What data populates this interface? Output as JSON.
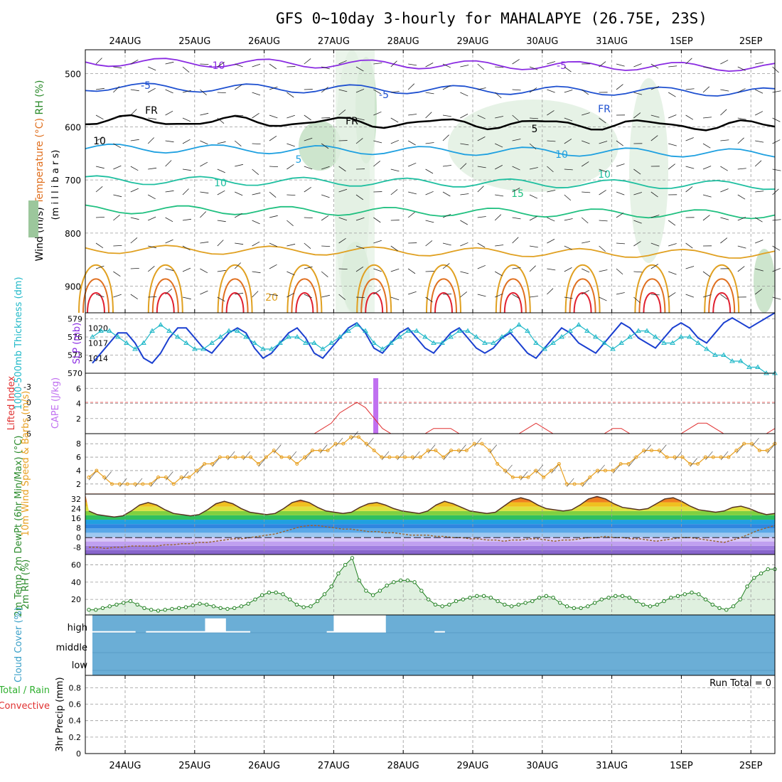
{
  "title": "GFS 0~10day 3-hourly for MAHALAPYE (26.75E, 23S)",
  "colors": {
    "grid": "#999999",
    "wind": "#000000",
    "temp_purple": "#8a2be2",
    "temp_blue": "#1e50d0",
    "temp_cyan": "#1ea0e0",
    "temp_teal": "#1ebfa0",
    "temp_green": "#20c080",
    "temp_orange": "#e0a020",
    "temp_darkorange": "#e07020",
    "temp_red": "#e02030",
    "rh_light": "#e3f1e3",
    "rh_mid": "#c8e2c8",
    "rh_dark": "#9cc79c",
    "slp": "#1a3fd0",
    "thickness": "#20b8c8",
    "li": "#e03030",
    "cape": "#c070f0",
    "wind10": "#e8a020",
    "rh2m_line": "#208020",
    "rh2m_fill": "#dff0df",
    "cloud_bg": "#6baed6",
    "cloud_high": "#ffffff"
  },
  "chart_data": [
    {
      "type": "line",
      "name": "upper-air",
      "ylabel_parts": [
        "Wind (m/s)",
        "Temperature (°C)",
        "RH (%)"
      ],
      "ylabel_units": "(m i l l i b a r s)",
      "yticks": [
        500,
        600,
        700,
        800,
        900
      ],
      "ylim": [
        455,
        950
      ],
      "x_dates": [
        "24AUG",
        "25AUG",
        "26AUG",
        "27AUG",
        "28AUG",
        "29AUG",
        "30AUG",
        "31AUG",
        "1SEP",
        "2SEP"
      ],
      "contours": [
        {
          "label": "-10",
          "level_mb": 478,
          "color": "temp_purple"
        },
        {
          "label": "-5",
          "level_mb": 525,
          "color": "temp_blue"
        },
        {
          "label": "FR",
          "level_mb": 588,
          "color": "wind"
        },
        {
          "label": "5",
          "level_mb": 640,
          "color": "temp_cyan"
        },
        {
          "label": "10",
          "level_mb": 700,
          "color": "temp_teal"
        },
        {
          "label": "15",
          "level_mb": 755,
          "color": "temp_green"
        },
        {
          "label": "20",
          "level_mb": 830,
          "color": "temp_orange"
        }
      ],
      "contour_labels": [
        "-10",
        "-5",
        "-5",
        "-5",
        "FR",
        "FR",
        "FR",
        "5",
        "5",
        "10",
        "10",
        "10",
        "15",
        "20",
        "10"
      ]
    },
    {
      "type": "line",
      "name": "slp-thickness",
      "ylabel_left": "1000-500mb Thickness (dm)",
      "ylabel_right": "SLP (mb)",
      "thickness_ticks": [
        570,
        573,
        576,
        579
      ],
      "slp_ticks": [
        1014,
        1017,
        1020
      ],
      "series": [
        {
          "name": "SLP",
          "values": [
            1013,
            1015,
            1017,
            1019,
            1019,
            1017,
            1014,
            1013,
            1015,
            1018,
            1020,
            1020,
            1018,
            1016,
            1015,
            1017,
            1019,
            1020,
            1019,
            1016,
            1014,
            1015,
            1017,
            1019,
            1020,
            1018,
            1015,
            1014,
            1016,
            1018,
            1020,
            1021,
            1019,
            1016,
            1015,
            1017,
            1019,
            1020,
            1018,
            1016,
            1015,
            1017,
            1019,
            1020,
            1018,
            1016,
            1015,
            1016,
            1018,
            1019,
            1017,
            1015,
            1014,
            1016,
            1018,
            1020,
            1019,
            1017,
            1016,
            1015,
            1017,
            1019,
            1021,
            1020,
            1018,
            1017,
            1016,
            1018,
            1020,
            1021,
            1020,
            1018,
            1017,
            1019,
            1021,
            1022,
            1021,
            1020,
            1021,
            1022,
            1023
          ]
        },
        {
          "name": "Thickness",
          "values": [
            576,
            577,
            577,
            576,
            575,
            574,
            575,
            577,
            578,
            577,
            576,
            575,
            574,
            574,
            575,
            576,
            577,
            577,
            576,
            575,
            574,
            574,
            575,
            576,
            576,
            575,
            575,
            574,
            575,
            576,
            577,
            578,
            577,
            575,
            574,
            575,
            576,
            577,
            577,
            576,
            575,
            575,
            576,
            577,
            577,
            576,
            575,
            575,
            576,
            577,
            578,
            577,
            575,
            574,
            575,
            576,
            577,
            578,
            577,
            576,
            575,
            574,
            575,
            576,
            577,
            577,
            576,
            575,
            575,
            576,
            576,
            575,
            574,
            573,
            573,
            572,
            572,
            571,
            571,
            570,
            570
          ]
        }
      ]
    },
    {
      "type": "line",
      "name": "li-cape",
      "ylabel_left": "Lifted Index",
      "ylabel_right": "CAPE (J/kg)",
      "li_ticks": [
        -3,
        0,
        3,
        6
      ],
      "cape_ticks": [
        2,
        4,
        6
      ],
      "cape_bar_date_index": 3.6,
      "li_values": [
        6,
        6,
        6,
        6,
        6,
        6,
        6,
        6,
        6,
        6,
        6,
        6,
        6,
        6,
        6,
        6,
        6,
        6,
        6,
        6,
        6,
        6,
        6,
        6,
        6,
        6,
        6,
        5,
        4,
        2,
        1,
        0,
        1,
        3,
        5,
        6,
        6,
        6,
        6,
        6,
        5,
        5,
        5,
        6,
        6,
        6,
        6,
        6,
        6,
        6,
        6,
        5,
        4,
        5,
        6,
        6,
        6,
        6,
        6,
        6,
        6,
        5,
        5,
        6,
        6,
        6,
        6,
        6,
        6,
        6,
        5,
        4,
        4,
        5,
        6,
        6,
        6,
        6,
        6,
        6,
        5
      ]
    },
    {
      "type": "line",
      "name": "wind10m",
      "ylabel": "10m Wind Speed & Barbs (m/s)",
      "yticks": [
        2,
        4,
        6,
        8
      ],
      "values": [
        3,
        4,
        3,
        2,
        2,
        2,
        2,
        2,
        2,
        3,
        3,
        2,
        3,
        3,
        4,
        5,
        5,
        6,
        6,
        6,
        6,
        6,
        5,
        6,
        7,
        6,
        6,
        5,
        6,
        7,
        7,
        7,
        8,
        8,
        9,
        9,
        8,
        7,
        6,
        6,
        6,
        6,
        6,
        6,
        7,
        7,
        6,
        7,
        7,
        7,
        8,
        8,
        7,
        5,
        4,
        3,
        3,
        3,
        4,
        3,
        4,
        5,
        2,
        2,
        2,
        3,
        4,
        4,
        4,
        5,
        5,
        6,
        7,
        7,
        7,
        6,
        6,
        6,
        5,
        5,
        6,
        6,
        6,
        6,
        7,
        8,
        8,
        7,
        7,
        8
      ]
    },
    {
      "type": "area",
      "name": "temp2m",
      "ylabel": "2m Temp 2m DewPt (6hr Min/Max) (°C)",
      "yticks": [
        -8,
        0,
        8,
        16,
        24,
        32
      ],
      "temp_values": [
        22,
        19,
        18,
        17,
        18,
        22,
        27,
        29,
        27,
        23,
        20,
        19,
        18,
        19,
        23,
        28,
        30,
        28,
        24,
        21,
        20,
        19,
        20,
        24,
        29,
        31,
        29,
        25,
        22,
        21,
        20,
        21,
        25,
        28,
        29,
        27,
        24,
        22,
        21,
        20,
        22,
        27,
        30,
        28,
        25,
        22,
        21,
        20,
        21,
        26,
        31,
        33,
        31,
        27,
        24,
        23,
        22,
        23,
        27,
        32,
        34,
        32,
        28,
        25,
        24,
        23,
        24,
        28,
        32,
        33,
        30,
        26,
        23,
        22,
        21,
        22,
        25,
        26,
        24,
        21,
        19,
        20
      ],
      "dewpt_values": [
        -8,
        -8,
        -9,
        -8,
        -8,
        -7,
        -7,
        -7,
        -7,
        -6,
        -6,
        -5,
        -5,
        -4,
        -4,
        -3,
        -2,
        -1,
        -1,
        0,
        1,
        2,
        3,
        5,
        7,
        9,
        10,
        10,
        9,
        8,
        7,
        7,
        6,
        5,
        5,
        4,
        4,
        3,
        2,
        2,
        2,
        1,
        1,
        0,
        0,
        -1,
        -1,
        -2,
        -2,
        -3,
        -2,
        -2,
        -1,
        -1,
        -2,
        -3,
        -2,
        -2,
        -1,
        0,
        0,
        1,
        0,
        0,
        -1,
        -1,
        -2,
        -3,
        -2,
        -1,
        0,
        0,
        -1,
        -2,
        -3,
        -4,
        -2,
        0,
        3,
        6,
        8,
        10
      ]
    },
    {
      "type": "area",
      "name": "rh2m",
      "ylabel": "2m RH (%)",
      "yticks": [
        20,
        40,
        60
      ],
      "values": [
        8,
        8,
        10,
        12,
        14,
        16,
        18,
        14,
        10,
        8,
        7,
        8,
        9,
        10,
        11,
        13,
        15,
        14,
        12,
        10,
        9,
        10,
        12,
        15,
        20,
        25,
        28,
        28,
        26,
        20,
        14,
        11,
        12,
        18,
        26,
        35,
        50,
        60,
        68,
        42,
        30,
        25,
        30,
        36,
        40,
        42,
        42,
        40,
        30,
        20,
        14,
        12,
        14,
        18,
        20,
        22,
        24,
        24,
        22,
        18,
        14,
        12,
        14,
        16,
        18,
        22,
        24,
        22,
        16,
        12,
        10,
        10,
        12,
        16,
        20,
        22,
        24,
        24,
        22,
        18,
        14,
        12,
        14,
        18,
        22,
        24,
        26,
        28,
        26,
        20,
        14,
        10,
        8,
        12,
        20,
        35,
        45,
        50,
        55,
        55
      ]
    },
    {
      "type": "bar",
      "name": "cloudcover",
      "ylabel": "Cloud Cover (%)",
      "levels": [
        "high",
        "middle",
        "low"
      ],
      "high_segments": [
        {
          "date_start": -0.5,
          "date_end": 0.15,
          "pct": 8
        },
        {
          "date_start": 0.3,
          "date_end": 0.9,
          "pct": 8
        },
        {
          "date_start": 0.9,
          "date_end": 1.8,
          "pct": 8
        },
        {
          "date_start": 1.15,
          "date_end": 1.45,
          "pct": 72
        },
        {
          "date_start": 2.9,
          "date_end": 3.75,
          "pct": 8
        },
        {
          "date_start": 3.0,
          "date_end": 3.75,
          "pct": 90
        },
        {
          "date_start": 4.45,
          "date_end": 4.6,
          "pct": 8
        }
      ]
    },
    {
      "type": "bar",
      "name": "precip3hr",
      "ylabel_left": "3hr Precip (mm)",
      "legend_total": "Total / Rain",
      "legend_conv": "Convective",
      "yticks": [
        0,
        0.2,
        0.4,
        0.6,
        0.8
      ],
      "run_total": "Run Total = 0",
      "values": []
    }
  ]
}
